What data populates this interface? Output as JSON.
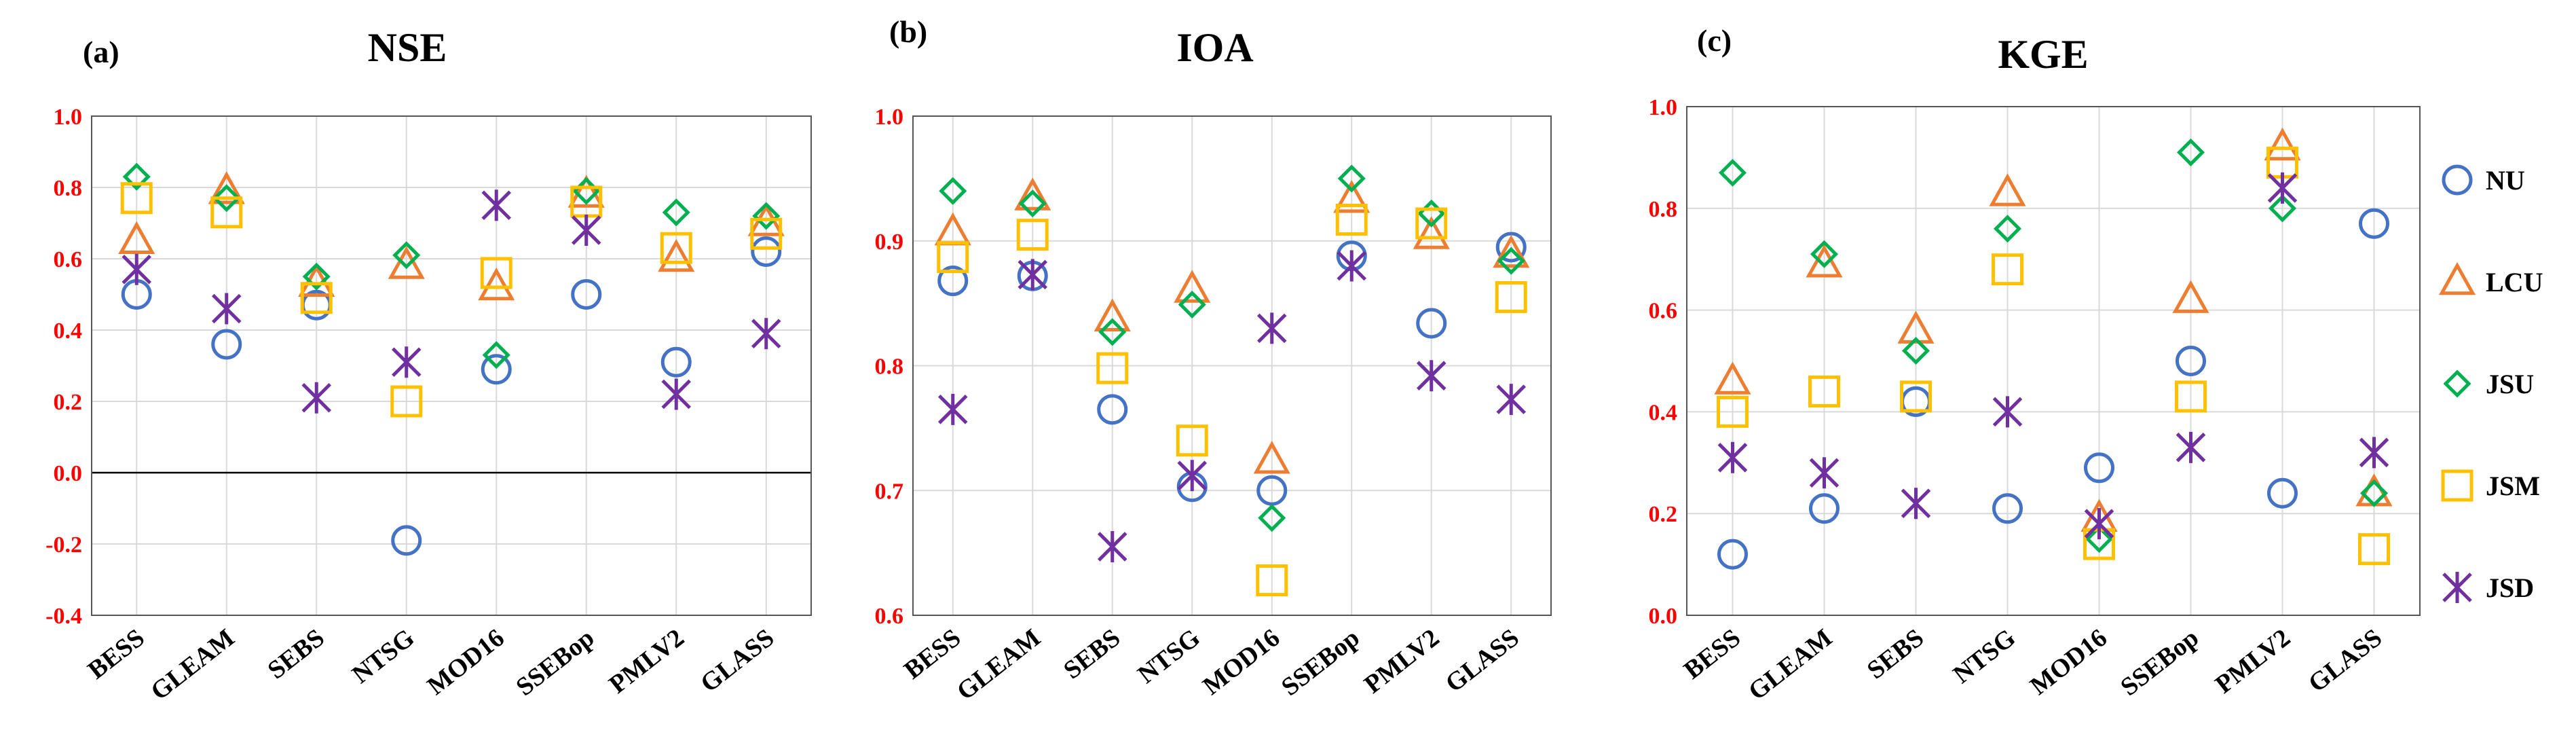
{
  "figure": {
    "series_styles": {
      "NU": {
        "marker": "circle",
        "color": "#4472C4"
      },
      "LCU": {
        "marker": "triangle",
        "color": "#ED7D31"
      },
      "JSU": {
        "marker": "diamond",
        "color": "#00B050"
      },
      "JSM": {
        "marker": "square",
        "color": "#FFC000"
      },
      "JSD": {
        "marker": "star",
        "color": "#7030A0"
      }
    },
    "legend": [
      "NU",
      "LCU",
      "JSU",
      "JSM",
      "JSD"
    ]
  },
  "chart_data": [
    {
      "type": "scatter",
      "panel_label": "(a)",
      "title": "NSE",
      "categories": [
        "BESS",
        "GLEAM",
        "SEBS",
        "NTSG",
        "MOD16",
        "SSEBop",
        "PMLV2",
        "GLASS"
      ],
      "ylim": [
        -0.4,
        1.0
      ],
      "yticks": [
        "1.0",
        "0.8",
        "0.6",
        "0.4",
        "0.2",
        "0.0",
        "-0.2",
        "-0.4"
      ],
      "zero_line": true,
      "series": [
        {
          "name": "NU",
          "values": [
            0.5,
            0.36,
            0.47,
            -0.19,
            0.29,
            0.5,
            0.31,
            0.62
          ]
        },
        {
          "name": "LCU",
          "values": [
            0.65,
            0.79,
            0.53,
            0.58,
            0.52,
            0.78,
            0.6,
            0.7
          ]
        },
        {
          "name": "JSU",
          "values": [
            0.83,
            0.77,
            0.55,
            0.61,
            0.33,
            0.79,
            0.73,
            0.72
          ]
        },
        {
          "name": "JSM",
          "values": [
            0.77,
            0.73,
            0.49,
            0.2,
            0.56,
            0.76,
            0.63,
            0.67
          ]
        },
        {
          "name": "JSD",
          "values": [
            0.57,
            0.46,
            0.21,
            0.31,
            0.75,
            0.68,
            0.22,
            0.39
          ]
        }
      ]
    },
    {
      "type": "scatter",
      "panel_label": "(b)",
      "title": "IOA",
      "categories": [
        "BESS",
        "GLEAM",
        "SEBS",
        "NTSG",
        "MOD16",
        "SSEBop",
        "PMLV2",
        "GLASS"
      ],
      "ylim": [
        0.6,
        1.0
      ],
      "yticks": [
        "1.0",
        "0.9",
        "0.8",
        "0.7",
        "0.6"
      ],
      "zero_line": false,
      "series": [
        {
          "name": "NU",
          "values": [
            0.868,
            0.872,
            0.765,
            0.703,
            0.7,
            0.888,
            0.834,
            0.895
          ]
        },
        {
          "name": "LCU",
          "values": [
            0.907,
            0.935,
            0.838,
            0.861,
            0.724,
            0.933,
            0.904,
            0.889
          ]
        },
        {
          "name": "JSU",
          "values": [
            0.94,
            0.93,
            0.827,
            0.849,
            0.678,
            0.95,
            0.922,
            0.884
          ]
        },
        {
          "name": "JSM",
          "values": [
            0.887,
            0.905,
            0.798,
            0.74,
            0.628,
            0.917,
            0.914,
            0.855
          ]
        },
        {
          "name": "JSD",
          "values": [
            0.765,
            0.873,
            0.655,
            0.712,
            0.83,
            0.88,
            0.792,
            0.773
          ]
        }
      ]
    },
    {
      "type": "scatter",
      "panel_label": "(c)",
      "title": "KGE",
      "categories": [
        "BESS",
        "GLEAM",
        "SEBS",
        "NTSG",
        "MOD16",
        "SSEBop",
        "PMLV2",
        "GLASS"
      ],
      "ylim": [
        0.0,
        1.0
      ],
      "yticks": [
        "1.0",
        "0.8",
        "0.6",
        "0.4",
        "0.2",
        "0.0"
      ],
      "zero_line": false,
      "series": [
        {
          "name": "NU",
          "values": [
            0.12,
            0.21,
            0.42,
            0.21,
            0.29,
            0.5,
            0.24,
            0.77
          ]
        },
        {
          "name": "LCU",
          "values": [
            0.46,
            0.69,
            0.56,
            0.83,
            0.19,
            0.62,
            0.92,
            0.24
          ]
        },
        {
          "name": "JSU",
          "values": [
            0.87,
            0.71,
            0.52,
            0.76,
            0.15,
            0.91,
            0.8,
            0.24
          ]
        },
        {
          "name": "JSM",
          "values": [
            0.4,
            0.44,
            0.43,
            0.68,
            0.14,
            0.43,
            0.89,
            0.13
          ]
        },
        {
          "name": "JSD",
          "values": [
            0.31,
            0.28,
            0.22,
            0.4,
            0.18,
            0.33,
            0.84,
            0.32
          ]
        }
      ]
    }
  ]
}
